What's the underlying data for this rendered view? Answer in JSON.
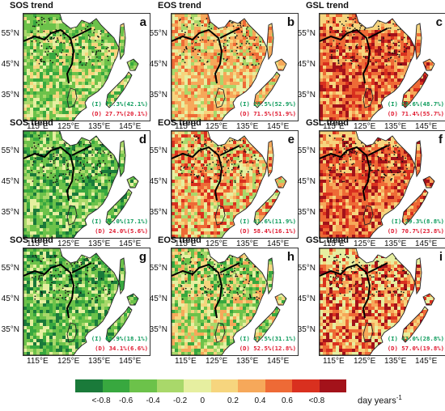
{
  "panels": [
    {
      "title": "SOS trend",
      "label": "a",
      "increase": "(I) 72.3%(42.1%)",
      "decrease": "(D) 27.7%(20.1%)",
      "tone": "green-mixed"
    },
    {
      "title": "EOS trend",
      "label": "b",
      "increase": "(I) 28.5%(52.9%)",
      "decrease": "(D) 71.5%(51.9%)",
      "tone": "orange"
    },
    {
      "title": "GSL trend",
      "label": "c",
      "increase": "(I) 28.6%(48.7%)",
      "decrease": "(D) 71.4%(55.7%)",
      "tone": "red"
    },
    {
      "title": "SOS trend",
      "label": "d",
      "increase": "(I) 76.0%(17.1%)",
      "decrease": "(D) 24.0%(5.6%)",
      "tone": "green"
    },
    {
      "title": "EOS trend",
      "label": "e",
      "increase": "(I) 41.6%(11.9%)",
      "decrease": "(D) 58.4%(16.1%)",
      "tone": "orange-red"
    },
    {
      "title": "GSL trend",
      "label": "f",
      "increase": "(I) 29.3%(8.8%)",
      "decrease": "(D) 70.7%(23.8%)",
      "tone": "red"
    },
    {
      "title": "SOS trend",
      "label": "g",
      "increase": "(I) 65.9%(18.1%)",
      "decrease": "(D) 34.1%(6.6%)",
      "tone": "green"
    },
    {
      "title": "EOS trend",
      "label": "h",
      "increase": "(I) 47.5%(31.1%)",
      "decrease": "(D) 52.5%(12.8%)",
      "tone": "green-orange"
    },
    {
      "title": "GSL trend",
      "label": "i",
      "increase": "(I) 43.0%(28.8%)",
      "decrease": "(D) 57.0%(19.8%)",
      "tone": "red-orange"
    }
  ],
  "axes": {
    "lat_ticks": [
      "55°N",
      "45°N",
      "35°N"
    ],
    "lon_ticks": [
      "115°E",
      "125°E",
      "135°E",
      "145°E"
    ]
  },
  "colorbar": {
    "colors": [
      "#1a7a3a",
      "#38a83f",
      "#6cc24a",
      "#a9d86a",
      "#e6efa0",
      "#f6d57e",
      "#f6a85a",
      "#ee6a36",
      "#d9301f",
      "#a3121a"
    ],
    "tick_labels": [
      "<-0.8",
      "-0.6",
      "-0.4",
      "-0.2",
      "0",
      "0.2",
      "0.4",
      "0.6",
      "<0.8"
    ],
    "unit_label": "day years",
    "unit_exponent": "-1"
  }
}
